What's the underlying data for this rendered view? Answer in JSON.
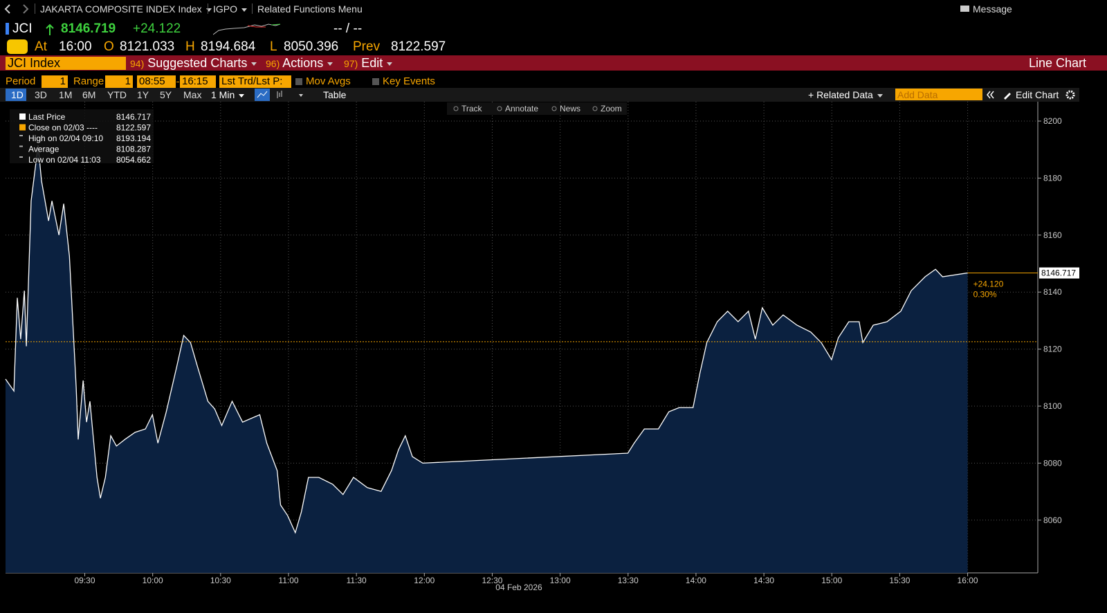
{
  "nav": {
    "security": "JAKARTA COMPOSITE INDEX Index",
    "code": "IGPO",
    "menu": "Related Functions Menu",
    "message": "Message"
  },
  "quote": {
    "ticker": "JCI",
    "last": "8146.719",
    "change": "+24.122",
    "bid_ask": "-- / --",
    "at_label": "At",
    "time": "16:00",
    "open_label": "O",
    "open": "8121.033",
    "high_label": "H",
    "high": "8194.684",
    "low_label": "L",
    "low": "8050.396",
    "prev_label": "Prev",
    "prev": "8122.597"
  },
  "toolbar": {
    "security": "JCI Index",
    "menu": [
      {
        "num": "94)",
        "label": "Suggested Charts"
      },
      {
        "num": "96)",
        "label": "Actions"
      },
      {
        "num": "97)",
        "label": "Edit"
      }
    ],
    "view": "Line Chart"
  },
  "controls": {
    "period_label": "Period",
    "period": "1",
    "range_label": "Range",
    "range": "1",
    "start": "08:55",
    "end": "16:15",
    "field": "Lst Trd/Lst P:",
    "mov_avgs": "Mov Avgs",
    "key_events": "Key Events",
    "ranges": [
      "1D",
      "3D",
      "1M",
      "6M",
      "YTD",
      "1Y",
      "5Y",
      "Max"
    ],
    "interval": "1 Min",
    "table": "Table",
    "related": "+ Related Data",
    "add_data": "Add Data",
    "edit_chart": "Edit Chart"
  },
  "chart_tools": [
    "Track",
    "Annotate",
    "News",
    "Zoom"
  ],
  "chart_data": {
    "type": "line",
    "xlabel": "04 Feb 2026",
    "x": [
      535,
      538.7,
      540.2,
      541.7,
      543.3,
      544.2,
      546.3,
      549.4,
      550.9,
      554,
      555.5,
      558.6,
      560.7,
      563.2,
      566.2,
      567.1,
      569.3,
      570.8,
      572.3,
      575.4,
      576.9,
      579.1,
      581.5,
      584,
      587.7,
      592.2,
      596.8,
      599.9,
      602.3,
      606,
      610.6,
      613.7,
      616.7,
      619.8,
      624.4,
      627.4,
      630.5,
      635.1,
      639.7,
      647.3,
      650.4,
      655,
      656.5,
      659.6,
      663,
      665.7,
      668.8,
      673.4,
      679.5,
      684.1,
      688.7,
      694.8,
      700.9,
      705.5,
      708.6,
      711.6,
      714.7,
      719.3,
      809.9,
      812.7,
      817.2,
      823.4,
      828,
      832.6,
      838.7,
      841.7,
      844.8,
      849.4,
      854,
      858.6,
      863.2,
      866.2,
      869.3,
      873.9,
      878.5,
      884.6,
      890.7,
      895.3,
      899.9,
      902.9,
      907.5,
      912.1,
      913.7,
      918.3,
      924.4,
      930.5,
      935.1,
      941.2,
      945.8,
      948.9,
      960
    ],
    "series": [
      {
        "name": "Last Price",
        "color": "#ffffff",
        "fill": "#0b2140",
        "values": [
          8109.5,
          8105.3,
          8138,
          8123.5,
          8140.5,
          8121,
          8172,
          8191.5,
          8179,
          8165,
          8172,
          8160,
          8171,
          8152.7,
          8106.6,
          8088.3,
          8109,
          8094.4,
          8101.7,
          8075,
          8067.7,
          8075,
          8089.6,
          8086,
          8088.3,
          8090.8,
          8092,
          8097,
          8087,
          8098,
          8113.8,
          8124.8,
          8122.3,
          8113.8,
          8101.7,
          8099,
          8093.2,
          8101.7,
          8094.4,
          8097,
          8087,
          8077.4,
          8065.3,
          8061.6,
          8055.6,
          8062.9,
          8075,
          8075,
          8072.6,
          8069,
          8075,
          8071.4,
          8070.1,
          8077.4,
          8084.7,
          8089.6,
          8082.3,
          8080,
          8083.5,
          8087,
          8092,
          8092,
          8098,
          8099.5,
          8099.5,
          8111.4,
          8122.3,
          8129.6,
          8133.3,
          8129.6,
          8133.3,
          8123.5,
          8134.5,
          8128.4,
          8132,
          8128.4,
          8126,
          8122.3,
          8116.3,
          8124,
          8129.6,
          8129.6,
          8122.3,
          8128.4,
          8129.6,
          8133.3,
          8140.5,
          8145.4,
          8148,
          8145.4,
          8146.717
        ]
      }
    ],
    "legend": [
      {
        "label": "Last Price",
        "value": 8146.717
      },
      {
        "label": "Close on 02/03 ----",
        "value": 8122.597
      },
      {
        "label": "High on 02/04 09:10",
        "value": 8193.194
      },
      {
        "label": "Average",
        "value": 8108.287
      },
      {
        "label": "Low on 02/04 11:03",
        "value": 8054.662
      }
    ],
    "change": "+24.120",
    "change_pct": "0.30%",
    "ref_color": "#f7a600",
    "xlim": [
      535,
      991
    ],
    "ylim": [
      8041.5,
      8206.8
    ],
    "xticks": [
      {
        "value": 570,
        "label": "09:30"
      },
      {
        "value": 600,
        "label": "10:00"
      },
      {
        "value": 630,
        "label": "10:30"
      },
      {
        "value": 660,
        "label": "11:00"
      },
      {
        "value": 690,
        "label": "11:30"
      },
      {
        "value": 720,
        "label": "12:00"
      },
      {
        "value": 750,
        "label": "12:30"
      },
      {
        "value": 780,
        "label": "13:00"
      },
      {
        "value": 810,
        "label": "13:30"
      },
      {
        "value": 840,
        "label": "14:00"
      },
      {
        "value": 870,
        "label": "14:30"
      },
      {
        "value": 900,
        "label": "15:00"
      },
      {
        "value": 930,
        "label": "15:30"
      },
      {
        "value": 960,
        "label": "16:00"
      }
    ],
    "yticks": [
      8060,
      8080,
      8100,
      8120,
      8140,
      8160,
      8180,
      8200
    ],
    "grid": true
  }
}
